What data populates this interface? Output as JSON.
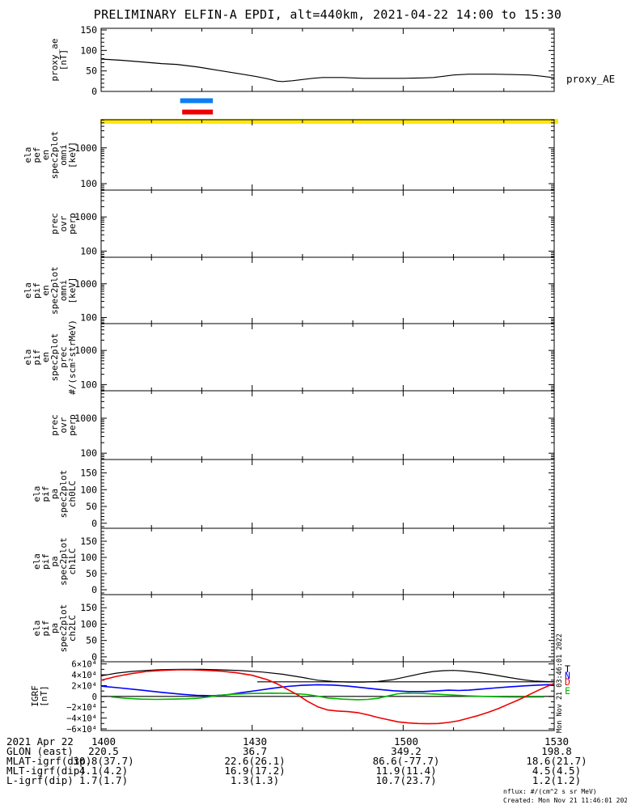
{
  "title": "PRELIMINARY ELFIN-A EPDI, alt=440km, 2021-04-22 14:00 to 15:30",
  "right_labels": {
    "proxy": "proxy_AE",
    "side_timestamp": "Mon Nov 21 03:46:01 2022",
    "legend": [
      {
        "label": "T",
        "color": "#000000"
      },
      {
        "label": "N",
        "color": "#0000ff"
      },
      {
        "label": "D",
        "color": "#ee0000"
      },
      {
        "label": "E",
        "color": "#00b400"
      }
    ]
  },
  "footer": {
    "rows": [
      {
        "label": "2021 Apr 22",
        "values": [
          "1400",
          "1430",
          "1500",
          "1530"
        ]
      },
      {
        "label": "GLON (east)",
        "values": [
          "220.5",
          "36.7",
          "349.2",
          "198.8"
        ]
      },
      {
        "label": "MLAT-igrf(dip)",
        "values": [
          "30.8(37.7)",
          "22.6(26.1)",
          "86.6(-77.7)",
          "18.6(21.7)"
        ]
      },
      {
        "label": "MLT-igrf(dip)",
        "values": [
          "4.1(4.2)",
          "16.9(17.2)",
          "11.9(11.4)",
          "4.5(4.5)"
        ]
      },
      {
        "label": "L-igrf(dip)",
        "values": [
          "1.7(1.7)",
          "1.3(1.3)",
          "10.7(23.7)",
          "1.2(1.2)"
        ]
      }
    ],
    "notes": [
      "nflux: #/(cm^2 s sr MeV)",
      "Created: Mon Nov 21 11:46:01 2022"
    ]
  },
  "chart_data": {
    "type": "line",
    "time_axis": {
      "start": "14:00",
      "end": "15:30",
      "tick_labels": [
        "1400",
        "1430",
        "1500",
        "1530"
      ],
      "major_minutes": [
        0,
        30,
        60,
        90
      ],
      "minor_step_minutes": 10,
      "xlabel_hidden": "minutes after 2021-04-22 14:00 UT"
    },
    "annotations": {
      "blue_bar_minutes": [
        15.7,
        22.2
      ],
      "red_bar_minutes": [
        16.1,
        22.2
      ],
      "yellow_bar": "full-width bar along top of first spectrogram panel",
      "colors": {
        "blue": "#0d7ef2",
        "red": "#ee0000",
        "yellow": "#ffe800"
      }
    },
    "panels": [
      {
        "id": "proxy_ae",
        "label_lines": [
          "proxy_ae",
          "[nT]"
        ],
        "scale": "linear",
        "ylim": [
          0,
          154
        ],
        "yticks": [
          0,
          50,
          100,
          150
        ],
        "minor_step": 10,
        "series": [
          {
            "name": "proxy_AE",
            "color": "#000000",
            "width": 1.2,
            "points": [
              [
                0,
                79
              ],
              [
                4,
                76
              ],
              [
                8,
                72
              ],
              [
                12,
                68
              ],
              [
                15,
                66
              ],
              [
                17,
                63
              ],
              [
                19,
                60
              ],
              [
                21,
                56
              ],
              [
                23,
                52
              ],
              [
                25,
                48
              ],
              [
                27,
                44
              ],
              [
                29,
                40
              ],
              [
                31,
                36
              ],
              [
                33,
                31
              ],
              [
                35,
                25
              ],
              [
                36,
                24
              ],
              [
                38,
                26
              ],
              [
                40,
                29
              ],
              [
                42,
                32
              ],
              [
                44,
                34
              ],
              [
                48,
                34
              ],
              [
                52,
                32
              ],
              [
                56,
                32
              ],
              [
                60,
                32
              ],
              [
                64,
                33
              ],
              [
                66,
                34
              ],
              [
                68,
                37
              ],
              [
                70,
                40
              ],
              [
                73,
                42
              ],
              [
                78,
                42
              ],
              [
                82,
                41
              ],
              [
                85,
                40
              ],
              [
                87,
                38
              ],
              [
                89,
                35
              ],
              [
                90,
                33
              ]
            ]
          }
        ]
      },
      {
        "id": "ela_pef_en_spec2plot_omni",
        "label_lines": [
          "ela",
          "pef",
          "en",
          "spec2plot",
          "omni",
          "[keV]"
        ],
        "scale": "log",
        "ylim": [
          66,
          6100
        ],
        "yticks": [
          100,
          1000
        ],
        "has_yellow_bar": true,
        "series": []
      },
      {
        "id": "prec_ovr_perp_1",
        "label_lines": [
          "prec",
          "ovr",
          "perp"
        ],
        "scale": "log",
        "ylim": [
          66,
          6100
        ],
        "yticks": [
          100,
          1000
        ],
        "series": []
      },
      {
        "id": "ela_pif_en_spec2plot_omni",
        "label_lines": [
          "ela",
          "pif",
          "en",
          "spec2plot",
          "omni",
          "[keV]"
        ],
        "scale": "log",
        "ylim": [
          66,
          6100
        ],
        "yticks": [
          100,
          1000
        ],
        "series": []
      },
      {
        "id": "ela_pif_en_spec2plot_prec",
        "label_lines": [
          "ela",
          "pif",
          "en",
          "spec2plot",
          "prec",
          "#/(scm²strMeV)"
        ],
        "scale": "log",
        "ylim": [
          66,
          6100
        ],
        "yticks": [
          100,
          1000
        ],
        "series": []
      },
      {
        "id": "prec_ovr_perp_2",
        "label_lines": [
          "prec",
          "ovr",
          "perp"
        ],
        "scale": "log",
        "ylim": [
          66,
          6100
        ],
        "yticks": [
          100,
          1000
        ],
        "series": []
      },
      {
        "id": "ela_pif_pa_spec2plot_ch0LC",
        "label_lines": [
          "ela",
          "pif",
          "pa",
          "spec2plot",
          "ch0LC"
        ],
        "scale": "linear",
        "ylim": [
          -15,
          190
        ],
        "yticks": [
          0,
          50,
          100,
          150
        ],
        "minor_step": 10,
        "series": []
      },
      {
        "id": "ela_pif_pa_spec2plot_ch1LC",
        "label_lines": [
          "ela",
          "pif",
          "pa",
          "spec2plot",
          "ch1LC"
        ],
        "scale": "linear",
        "ylim": [
          -15,
          190
        ],
        "yticks": [
          0,
          50,
          100,
          150
        ],
        "minor_step": 10,
        "series": []
      },
      {
        "id": "ela_pif_pa_spec2plot_ch2LC",
        "label_lines": [
          "ela",
          "pif",
          "pa",
          "spec2plot",
          "ch2LC"
        ],
        "scale": "linear",
        "ylim": [
          -15,
          190
        ],
        "yticks": [
          0,
          50,
          100,
          150
        ],
        "minor_step": 10,
        "series": []
      },
      {
        "id": "igrf",
        "label_lines": [
          "IGRF",
          "[nT]"
        ],
        "scale": "linear",
        "y_unit": "10^4 nT",
        "ylim": [
          -6.3,
          6.4
        ],
        "yticks": [
          -6,
          -4,
          -2,
          0,
          2,
          4,
          6
        ],
        "ytick_labels": [
          "−6×10⁴",
          "−4×10⁴",
          "−2×10⁴",
          "0",
          "2×10⁴",
          "4×10⁴",
          "6×10⁴"
        ],
        "minor_step": 1,
        "zero_line": true,
        "series": [
          {
            "name": "T",
            "color": "#000000",
            "width": 1.2,
            "points": [
              [
                0,
                3.8
              ],
              [
                3,
                4.3
              ],
              [
                6,
                4.6
              ],
              [
                9,
                4.8
              ],
              [
                12,
                4.95
              ],
              [
                16,
                5.0
              ],
              [
                20,
                5.0
              ],
              [
                24,
                4.9
              ],
              [
                28,
                4.75
              ],
              [
                32,
                4.5
              ],
              [
                36,
                4.1
              ],
              [
                40,
                3.5
              ],
              [
                43,
                3.0
              ],
              [
                46,
                2.75
              ],
              [
                49,
                2.65
              ],
              [
                52,
                2.65
              ],
              [
                55,
                2.75
              ],
              [
                58,
                3.1
              ],
              [
                61,
                3.7
              ],
              [
                64,
                4.3
              ],
              [
                66,
                4.6
              ],
              [
                68,
                4.75
              ],
              [
                70,
                4.8
              ],
              [
                72,
                4.7
              ],
              [
                75,
                4.4
              ],
              [
                78,
                4.0
              ],
              [
                81,
                3.5
              ],
              [
                84,
                3.05
              ],
              [
                86,
                2.85
              ],
              [
                88,
                2.75
              ],
              [
                90,
                2.7
              ]
            ]
          },
          {
            "name": "T-flat",
            "color": "#000000",
            "width": 1.2,
            "points": [
              [
                31,
                2.7
              ],
              [
                90,
                2.7
              ]
            ]
          },
          {
            "name": "N",
            "color": "#0000ff",
            "width": 1.6,
            "points": [
              [
                0,
                1.9
              ],
              [
                4,
                1.55
              ],
              [
                8,
                1.15
              ],
              [
                12,
                0.75
              ],
              [
                16,
                0.4
              ],
              [
                19,
                0.2
              ],
              [
                22,
                0.12
              ],
              [
                25,
                0.3
              ],
              [
                28,
                0.7
              ],
              [
                31,
                1.1
              ],
              [
                34,
                1.5
              ],
              [
                37,
                1.85
              ],
              [
                40,
                2.05
              ],
              [
                43,
                2.15
              ],
              [
                46,
                2.1
              ],
              [
                49,
                1.9
              ],
              [
                52,
                1.6
              ],
              [
                55,
                1.3
              ],
              [
                58,
                1.05
              ],
              [
                61,
                0.9
              ],
              [
                64,
                0.9
              ],
              [
                67,
                1.05
              ],
              [
                69,
                1.15
              ],
              [
                71,
                1.1
              ],
              [
                73,
                1.15
              ],
              [
                75,
                1.3
              ],
              [
                78,
                1.55
              ],
              [
                81,
                1.75
              ],
              [
                84,
                1.95
              ],
              [
                87,
                2.1
              ],
              [
                90,
                2.2
              ]
            ]
          },
          {
            "name": "E",
            "color": "#00b400",
            "width": 1.6,
            "points": [
              [
                2,
                -0.1
              ],
              [
                5,
                -0.35
              ],
              [
                8,
                -0.5
              ],
              [
                11,
                -0.55
              ],
              [
                14,
                -0.5
              ],
              [
                17,
                -0.45
              ],
              [
                19,
                -0.35
              ],
              [
                21,
                -0.15
              ],
              [
                23,
                0.15
              ],
              [
                26,
                0.4
              ],
              [
                30,
                0.55
              ],
              [
                34,
                0.6
              ],
              [
                38,
                0.55
              ],
              [
                41,
                0.35
              ],
              [
                43,
                0.05
              ],
              [
                45,
                -0.3
              ],
              [
                48,
                -0.5
              ],
              [
                51,
                -0.6
              ],
              [
                53,
                -0.55
              ],
              [
                55,
                -0.35
              ],
              [
                57,
                0.1
              ],
              [
                59,
                0.5
              ],
              [
                61,
                0.6
              ],
              [
                64,
                0.55
              ],
              [
                67,
                0.4
              ],
              [
                70,
                0.25
              ],
              [
                73,
                0.1
              ],
              [
                76,
                0.0
              ],
              [
                80,
                -0.1
              ],
              [
                84,
                -0.12
              ],
              [
                88,
                -0.1
              ]
            ]
          },
          {
            "name": "D",
            "color": "#ee0000",
            "width": 1.6,
            "points": [
              [
                0,
                3.0
              ],
              [
                3,
                3.7
              ],
              [
                6,
                4.2
              ],
              [
                9,
                4.6
              ],
              [
                12,
                4.8
              ],
              [
                15,
                4.9
              ],
              [
                18,
                4.9
              ],
              [
                21,
                4.8
              ],
              [
                24,
                4.65
              ],
              [
                27,
                4.35
              ],
              [
                30,
                3.9
              ],
              [
                33,
                3.1
              ],
              [
                35,
                2.3
              ],
              [
                37,
                1.3
              ],
              [
                39,
                0.3
              ],
              [
                41,
                -0.9
              ],
              [
                43,
                -1.9
              ],
              [
                45,
                -2.5
              ],
              [
                47,
                -2.7
              ],
              [
                49,
                -2.8
              ],
              [
                51,
                -3.0
              ],
              [
                53,
                -3.4
              ],
              [
                55,
                -3.9
              ],
              [
                57,
                -4.3
              ],
              [
                59,
                -4.7
              ],
              [
                61,
                -4.9
              ],
              [
                63,
                -5.0
              ],
              [
                65,
                -5.05
              ],
              [
                67,
                -5.0
              ],
              [
                69,
                -4.8
              ],
              [
                71,
                -4.5
              ],
              [
                73,
                -4.0
              ],
              [
                75,
                -3.5
              ],
              [
                77,
                -2.9
              ],
              [
                79,
                -2.2
              ],
              [
                81,
                -1.4
              ],
              [
                83,
                -0.6
              ],
              [
                85,
                0.3
              ],
              [
                87,
                1.2
              ],
              [
                89,
                2.0
              ],
              [
                90,
                2.4
              ]
            ]
          }
        ]
      }
    ]
  }
}
